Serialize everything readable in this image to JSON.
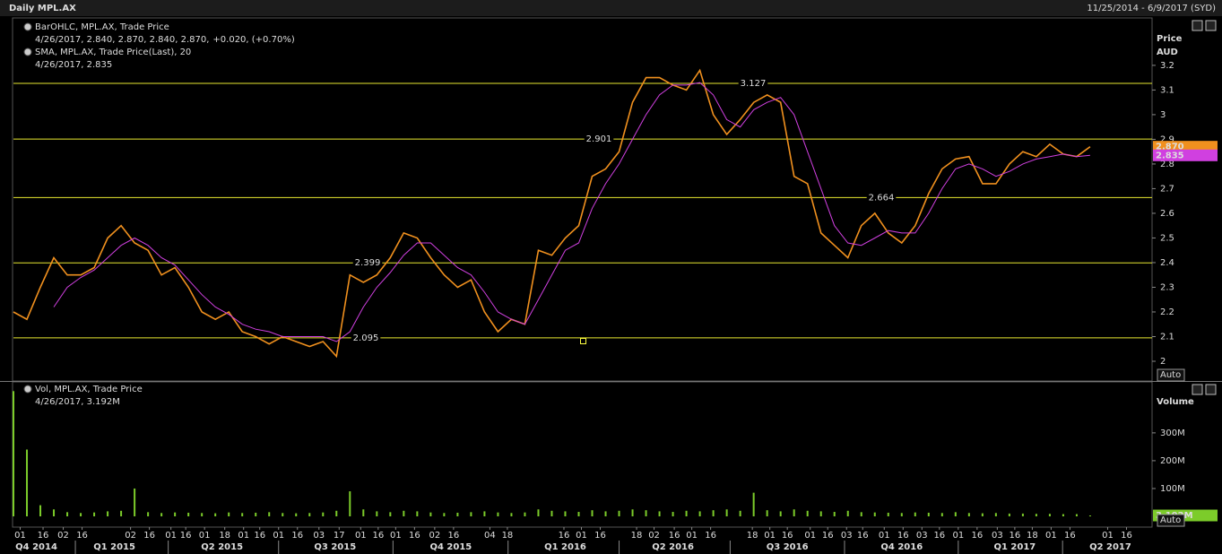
{
  "header": {
    "title": "Daily MPL.AX",
    "range": "11/25/2014 - 6/9/2017 (SYD)"
  },
  "chart_data": [
    {
      "type": "line",
      "y_axis_title": "Price",
      "y_axis_unit": "AUD",
      "button": "Auto",
      "xlim": [
        0,
        84.6
      ],
      "ylim": [
        1.92,
        3.385
      ],
      "yticks": [
        2,
        2.1,
        2.2,
        2.3,
        2.4,
        2.5,
        2.6,
        2.7,
        2.8,
        2.9,
        3,
        3.1,
        3.2
      ],
      "reference_lines": [
        3.127,
        2.901,
        2.664,
        2.399,
        2.095
      ],
      "series": [
        {
          "name": "BarOHLC, MPL.AX, Trade Price",
          "color": "#f0901e",
          "detail": "4/26/2017, 2.840, 2.870, 2.840, 2.870,",
          "change": "+0.020, (+0.70%)",
          "last": {
            "value": 2.87,
            "label": "2.870"
          },
          "values": [
            2.2,
            2.17,
            2.3,
            2.42,
            2.35,
            2.35,
            2.38,
            2.5,
            2.55,
            2.48,
            2.45,
            2.35,
            2.38,
            2.3,
            2.2,
            2.17,
            2.2,
            2.12,
            2.1,
            2.07,
            2.1,
            2.08,
            2.06,
            2.08,
            2.02,
            2.35,
            2.32,
            2.35,
            2.42,
            2.52,
            2.5,
            2.42,
            2.35,
            2.3,
            2.33,
            2.2,
            2.12,
            2.17,
            2.15,
            2.45,
            2.43,
            2.5,
            2.55,
            2.75,
            2.78,
            2.85,
            3.05,
            3.15,
            3.15,
            3.12,
            3.1,
            3.18,
            3.0,
            2.92,
            2.98,
            3.05,
            3.08,
            3.05,
            2.75,
            2.72,
            2.52,
            2.47,
            2.42,
            2.55,
            2.6,
            2.52,
            2.48,
            2.55,
            2.68,
            2.78,
            2.82,
            2.83,
            2.72,
            2.72,
            2.8,
            2.85,
            2.83,
            2.88,
            2.84,
            2.83,
            2.87
          ]
        },
        {
          "name": "SMA, MPL.AX, Trade Price(Last), 20",
          "color": "#d040e0",
          "detail": "4/26/2017, 2.835",
          "last": {
            "value": 2.835,
            "label": "2.835"
          },
          "values": [
            null,
            null,
            null,
            2.22,
            2.3,
            2.34,
            2.37,
            2.42,
            2.47,
            2.5,
            2.47,
            2.42,
            2.39,
            2.33,
            2.27,
            2.22,
            2.19,
            2.15,
            2.13,
            2.12,
            2.1,
            2.1,
            2.1,
            2.1,
            2.08,
            2.12,
            2.22,
            2.3,
            2.36,
            2.43,
            2.48,
            2.48,
            2.43,
            2.38,
            2.35,
            2.28,
            2.2,
            2.17,
            2.15,
            2.25,
            2.35,
            2.45,
            2.48,
            2.62,
            2.72,
            2.8,
            2.9,
            3.0,
            3.08,
            3.12,
            3.12,
            3.13,
            3.08,
            2.98,
            2.95,
            3.02,
            3.05,
            3.07,
            3.0,
            2.85,
            2.7,
            2.55,
            2.48,
            2.47,
            2.5,
            2.53,
            2.52,
            2.52,
            2.6,
            2.7,
            2.78,
            2.8,
            2.78,
            2.75,
            2.77,
            2.8,
            2.82,
            2.83,
            2.84,
            2.83,
            2.835
          ]
        }
      ]
    },
    {
      "type": "bar",
      "y_axis_title": "Volume",
      "button": "Auto",
      "xlim": [
        0,
        84.6
      ],
      "ylim": [
        0,
        480
      ],
      "yticks": [
        {
          "value": 100,
          "label": "100M"
        },
        {
          "value": 200,
          "label": "200M"
        },
        {
          "value": 300,
          "label": "300M"
        }
      ],
      "series": [
        {
          "name": "Vol, MPL.AX, Trade Price",
          "color": "#7ccc2a",
          "detail": "4/26/2017, 3.192M",
          "last": {
            "value": 3.192,
            "label": "3.192M"
          },
          "values": [
            450,
            240,
            40,
            25,
            15,
            12,
            14,
            18,
            20,
            100,
            15,
            12,
            14,
            13,
            12,
            11,
            14,
            12,
            13,
            15,
            12,
            11,
            12,
            14,
            20,
            90,
            25,
            18,
            15,
            20,
            18,
            14,
            12,
            13,
            15,
            18,
            14,
            12,
            14,
            25,
            20,
            18,
            16,
            22,
            18,
            20,
            25,
            22,
            18,
            16,
            20,
            18,
            22,
            25,
            20,
            85,
            22,
            18,
            25,
            20,
            18,
            16,
            20,
            15,
            14,
            13,
            12,
            14,
            13,
            12,
            15,
            12,
            11,
            12,
            10,
            10,
            9,
            9,
            8,
            8,
            3.192
          ]
        }
      ],
      "xticks": [
        {
          "value": 0.5,
          "label": "01"
        },
        {
          "value": 2.2,
          "label": "16"
        },
        {
          "value": 3.7,
          "label": "02"
        },
        {
          "value": 5.1,
          "label": "16"
        },
        {
          "value": 8.7,
          "label": "02"
        },
        {
          "value": 10.1,
          "label": "16"
        },
        {
          "value": 11.7,
          "label": "01"
        },
        {
          "value": 12.8,
          "label": "16"
        },
        {
          "value": 14.2,
          "label": "01"
        },
        {
          "value": 15.7,
          "label": "18"
        },
        {
          "value": 17.1,
          "label": "01"
        },
        {
          "value": 18.3,
          "label": "16"
        },
        {
          "value": 19.7,
          "label": "01"
        },
        {
          "value": 21.1,
          "label": "16"
        },
        {
          "value": 22.7,
          "label": "03"
        },
        {
          "value": 24.2,
          "label": "17"
        },
        {
          "value": 25.8,
          "label": "01"
        },
        {
          "value": 27.1,
          "label": "16"
        },
        {
          "value": 28.4,
          "label": "01"
        },
        {
          "value": 29.8,
          "label": "16"
        },
        {
          "value": 31.3,
          "label": "02"
        },
        {
          "value": 32.7,
          "label": "16"
        },
        {
          "value": 35.4,
          "label": "04"
        },
        {
          "value": 36.7,
          "label": "18"
        },
        {
          "value": 40.9,
          "label": "16"
        },
        {
          "value": 42.2,
          "label": "01"
        },
        {
          "value": 43.6,
          "label": "16"
        },
        {
          "value": 46.3,
          "label": "18"
        },
        {
          "value": 47.6,
          "label": "02"
        },
        {
          "value": 49.1,
          "label": "16"
        },
        {
          "value": 50.4,
          "label": "01"
        },
        {
          "value": 51.8,
          "label": "16"
        },
        {
          "value": 54.9,
          "label": "18"
        },
        {
          "value": 56.2,
          "label": "01"
        },
        {
          "value": 57.5,
          "label": "16"
        },
        {
          "value": 59.2,
          "label": "01"
        },
        {
          "value": 60.5,
          "label": "16"
        },
        {
          "value": 61.9,
          "label": "03"
        },
        {
          "value": 63.1,
          "label": "16"
        },
        {
          "value": 64.7,
          "label": "01"
        },
        {
          "value": 66.1,
          "label": "16"
        },
        {
          "value": 67.5,
          "label": "03"
        },
        {
          "value": 68.8,
          "label": "16"
        },
        {
          "value": 70.2,
          "label": "01"
        },
        {
          "value": 71.6,
          "label": "16"
        },
        {
          "value": 73.1,
          "label": "03"
        },
        {
          "value": 74.4,
          "label": "16"
        },
        {
          "value": 75.7,
          "label": "18"
        },
        {
          "value": 77.1,
          "label": "01"
        },
        {
          "value": 78.5,
          "label": "16"
        },
        {
          "value": 81.3,
          "label": "01"
        },
        {
          "value": 82.7,
          "label": "16"
        }
      ],
      "quarter_ticks": [
        {
          "value": 1.7,
          "label": "Q4 2014"
        },
        {
          "value": 7.5,
          "label": "Q1 2015"
        },
        {
          "value": 15.5,
          "label": "Q2 2015"
        },
        {
          "value": 23.9,
          "label": "Q3 2015"
        },
        {
          "value": 32.5,
          "label": "Q4 2015"
        },
        {
          "value": 41,
          "label": "Q1 2016"
        },
        {
          "value": 49,
          "label": "Q2 2016"
        },
        {
          "value": 57.5,
          "label": "Q3 2016"
        },
        {
          "value": 66,
          "label": "Q4 2016"
        },
        {
          "value": 74.4,
          "label": "Q1 2017"
        },
        {
          "value": 81.5,
          "label": "Q2 2017"
        }
      ]
    }
  ]
}
